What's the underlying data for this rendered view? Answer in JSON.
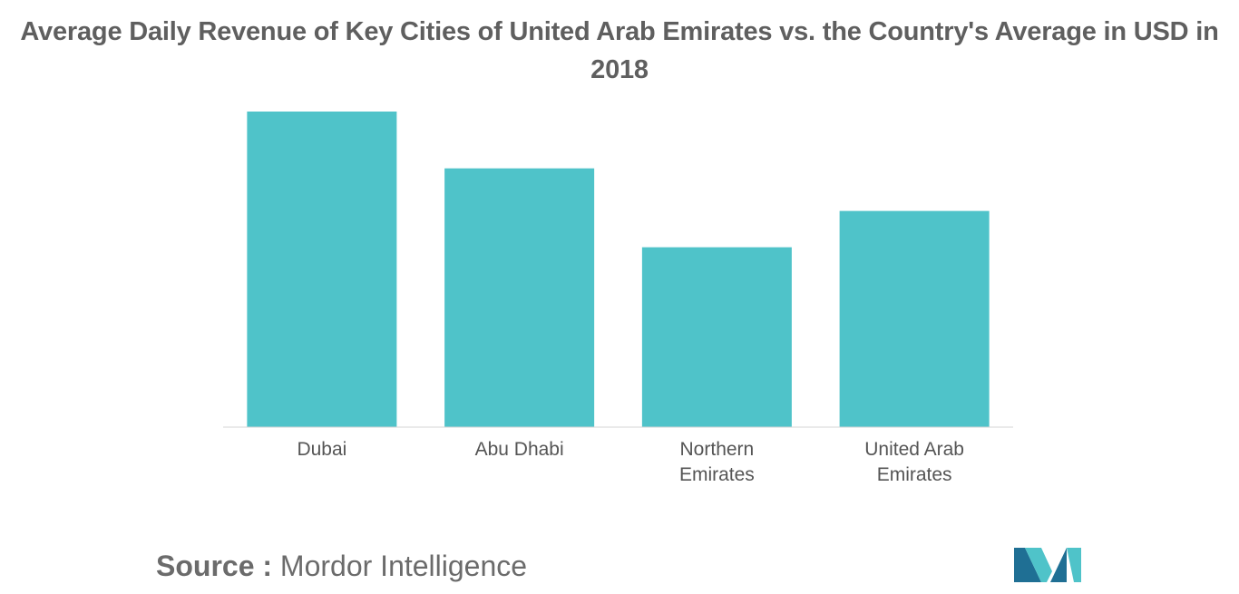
{
  "chart_data": {
    "type": "bar",
    "title": "Average Daily Revenue of Key Cities of United Arab Emirates vs. the Country's Average in USD in 2018",
    "categories": [
      [
        "Dubai"
      ],
      [
        "Abu Dhabi"
      ],
      [
        "Northern",
        "Emirates"
      ],
      [
        "United Arab",
        "Emirates"
      ]
    ],
    "values": [
      100,
      82,
      57,
      68.5
    ],
    "value_scale": "relative (no axis values printed)",
    "ylim": [
      0,
      100
    ],
    "xlabel": "",
    "ylabel": "",
    "grid": false,
    "legend": "none",
    "bar_color": "#4fc3c9"
  },
  "source": {
    "label": "Source :",
    "text": "Mordor Intelligence"
  },
  "colors": {
    "bar": "#4fc3c9",
    "axis": "#d6d6d6",
    "title": "#5f5f5f",
    "tick_label": "#555555",
    "logo_dark": "#1f6f94",
    "logo_light": "#4fc3c9"
  },
  "logo": {
    "icon": "mordor-intelligence-logo-icon"
  }
}
